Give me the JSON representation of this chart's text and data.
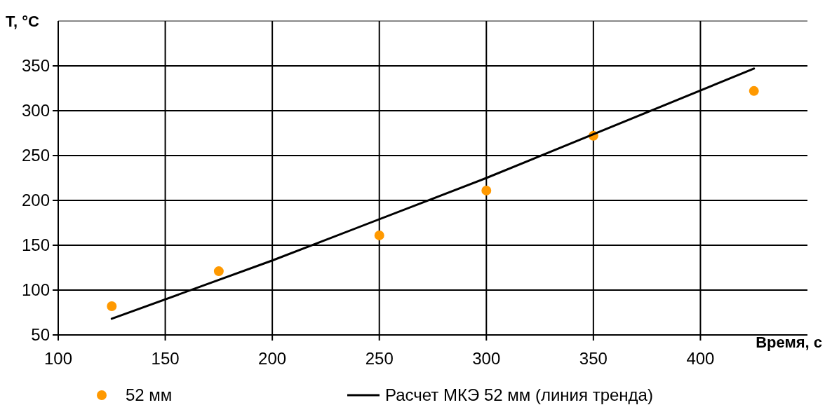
{
  "chart_data": {
    "type": "scatter",
    "xlabel": "Время, с",
    "ylabel": "T, °C",
    "xlim": [
      100,
      450
    ],
    "xticks": [
      100,
      150,
      200,
      250,
      300,
      350,
      400
    ],
    "ylim": [
      50,
      400
    ],
    "yticks": [
      50,
      100,
      150,
      200,
      250,
      300,
      350
    ],
    "grid": true,
    "legend": "bottom",
    "marker": "circle",
    "series": [
      {
        "name": "52 мм",
        "color": "#ff9900",
        "x": [
          125,
          175,
          250,
          300,
          350,
          425
        ],
        "values": [
          82,
          121,
          161,
          211,
          272,
          322
        ]
      },
      {
        "name": "Расчет МКЭ 52 мм (линия тренда)",
        "type": "line",
        "color": "#000000",
        "line_style": "solid",
        "marker": "none",
        "x": [
          125,
          200,
          300,
          425
        ],
        "values": [
          68,
          133,
          225,
          347
        ]
      }
    ]
  }
}
